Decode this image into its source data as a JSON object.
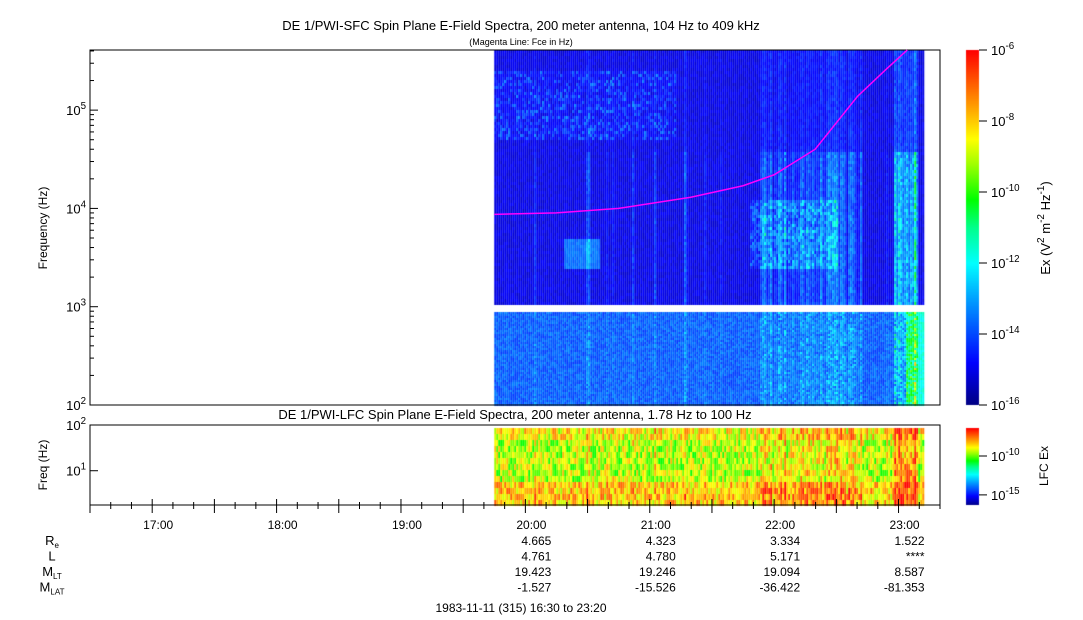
{
  "chart_data": [
    {
      "type": "heatmap",
      "title": "DE 1/PWI-SFC  Spin Plane E-Field Spectra, 200 meter antenna, 104 Hz to 409 kHz",
      "subtitle": "(Magenta Line: Fce in Hz)",
      "ylabel": "Frequency (Hz)",
      "yscale": "log",
      "ylim": [
        100,
        409000
      ],
      "y_tick_exponents": [
        2,
        3,
        4,
        5
      ],
      "xlim": [
        "16:30",
        "23:20"
      ],
      "data_time_range": [
        "19:45",
        "23:12"
      ],
      "colorbar": {
        "label": "Ex (V2 m-2 Hz-1)",
        "label_parts": [
          "Ex (V",
          "2",
          " m",
          "-2",
          " Hz",
          "-1",
          ")"
        ],
        "scale": "log",
        "range_exponents": [
          -16,
          -6
        ],
        "tick_exponents": [
          -16,
          -14,
          -12,
          -10,
          -8,
          -6
        ]
      },
      "fce_line": {
        "color": "#ff00ff",
        "points": [
          [
            19.75,
            8700
          ],
          [
            20.25,
            9000
          ],
          [
            20.75,
            10000
          ],
          [
            21.33,
            13000
          ],
          [
            21.75,
            17000
          ],
          [
            22.0,
            22000
          ],
          [
            22.33,
            40000
          ],
          [
            22.67,
            138000
          ],
          [
            22.9,
            260000
          ],
          [
            23.07,
            409000
          ]
        ]
      }
    },
    {
      "type": "heatmap",
      "title": "DE 1/PWI-LFC  Spin Plane E-Field Spectra, 200 meter antenna, 1.78 Hz to 100 Hz",
      "ylabel": "Freq (Hz)",
      "yscale": "log",
      "ylim": [
        1.78,
        100
      ],
      "y_tick_exponents": [
        1,
        2
      ],
      "colorbar": {
        "label": "LFC Ex",
        "scale": "log",
        "tick_exponents": [
          -15,
          -10
        ]
      }
    }
  ],
  "time_axis": {
    "tick_labels": [
      "17:00",
      "18:00",
      "19:00",
      "20:00",
      "21:00",
      "22:00",
      "23:00"
    ],
    "tick_hours": [
      17,
      18,
      19,
      20,
      21,
      22,
      23
    ],
    "footer": "1983-11-11 (315) 16:30 to 23:20"
  },
  "ephemeris": {
    "rows": [
      {
        "label": "R",
        "sub": "e",
        "values": [
          "4.665",
          "4.323",
          "3.334",
          "1.522"
        ]
      },
      {
        "label": "L",
        "sub": "",
        "values": [
          "4.761",
          "4.780",
          "5.171",
          "****"
        ]
      },
      {
        "label": "M",
        "sub": "LT",
        "values": [
          "19.423",
          "19.246",
          "19.094",
          "8.587"
        ]
      },
      {
        "label": "M",
        "sub": "LAT",
        "values": [
          "-1.527",
          "-15.526",
          "-36.422",
          "-81.353"
        ]
      }
    ],
    "column_hours": [
      20,
      21,
      22,
      23
    ]
  }
}
